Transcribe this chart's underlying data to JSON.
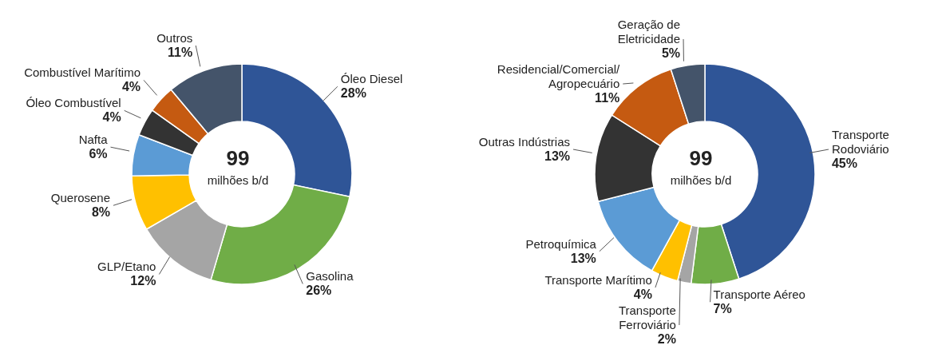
{
  "chart_data": [
    {
      "type": "donut",
      "categories": [
        "Óleo Diesel",
        "Gasolina",
        "GLP/Etano",
        "Querosene",
        "Nafta",
        "Óleo Combustível",
        "Combustível Marítimo",
        "Outros"
      ],
      "values": [
        28,
        26,
        12,
        8,
        6,
        4,
        4,
        11
      ],
      "colors": [
        "#2f5597",
        "#70ad47",
        "#a5a5a5",
        "#ffc000",
        "#5b9bd5",
        "#333333",
        "#c55a11",
        "#44546a"
      ],
      "value_labels": [
        "28%",
        "26%",
        "12%",
        "8%",
        "6%",
        "4%",
        "4%",
        "11%"
      ],
      "annotations": [
        "99",
        "milhões b/d"
      ],
      "legend": false
    },
    {
      "type": "donut",
      "categories": [
        "Transporte Rodoviário",
        "Transporte Aéreo",
        "Transporte Ferroviário",
        "Transporte Marítimo",
        "Petroquímica",
        "Outras Indústrias",
        "Residencial/Comercial/ Agropecuário",
        "Geração de Eletricidade"
      ],
      "values": [
        45,
        7,
        2,
        4,
        13,
        13,
        11,
        5
      ],
      "colors": [
        "#2f5597",
        "#70ad47",
        "#a5a5a5",
        "#ffc000",
        "#5b9bd5",
        "#333333",
        "#c55a11",
        "#44546a"
      ],
      "value_labels": [
        "45%",
        "7%",
        "2%",
        "4%",
        "13%",
        "13%",
        "11%",
        "5%"
      ],
      "annotations": [
        "99",
        "milhões b/d"
      ],
      "legend": false
    }
  ]
}
